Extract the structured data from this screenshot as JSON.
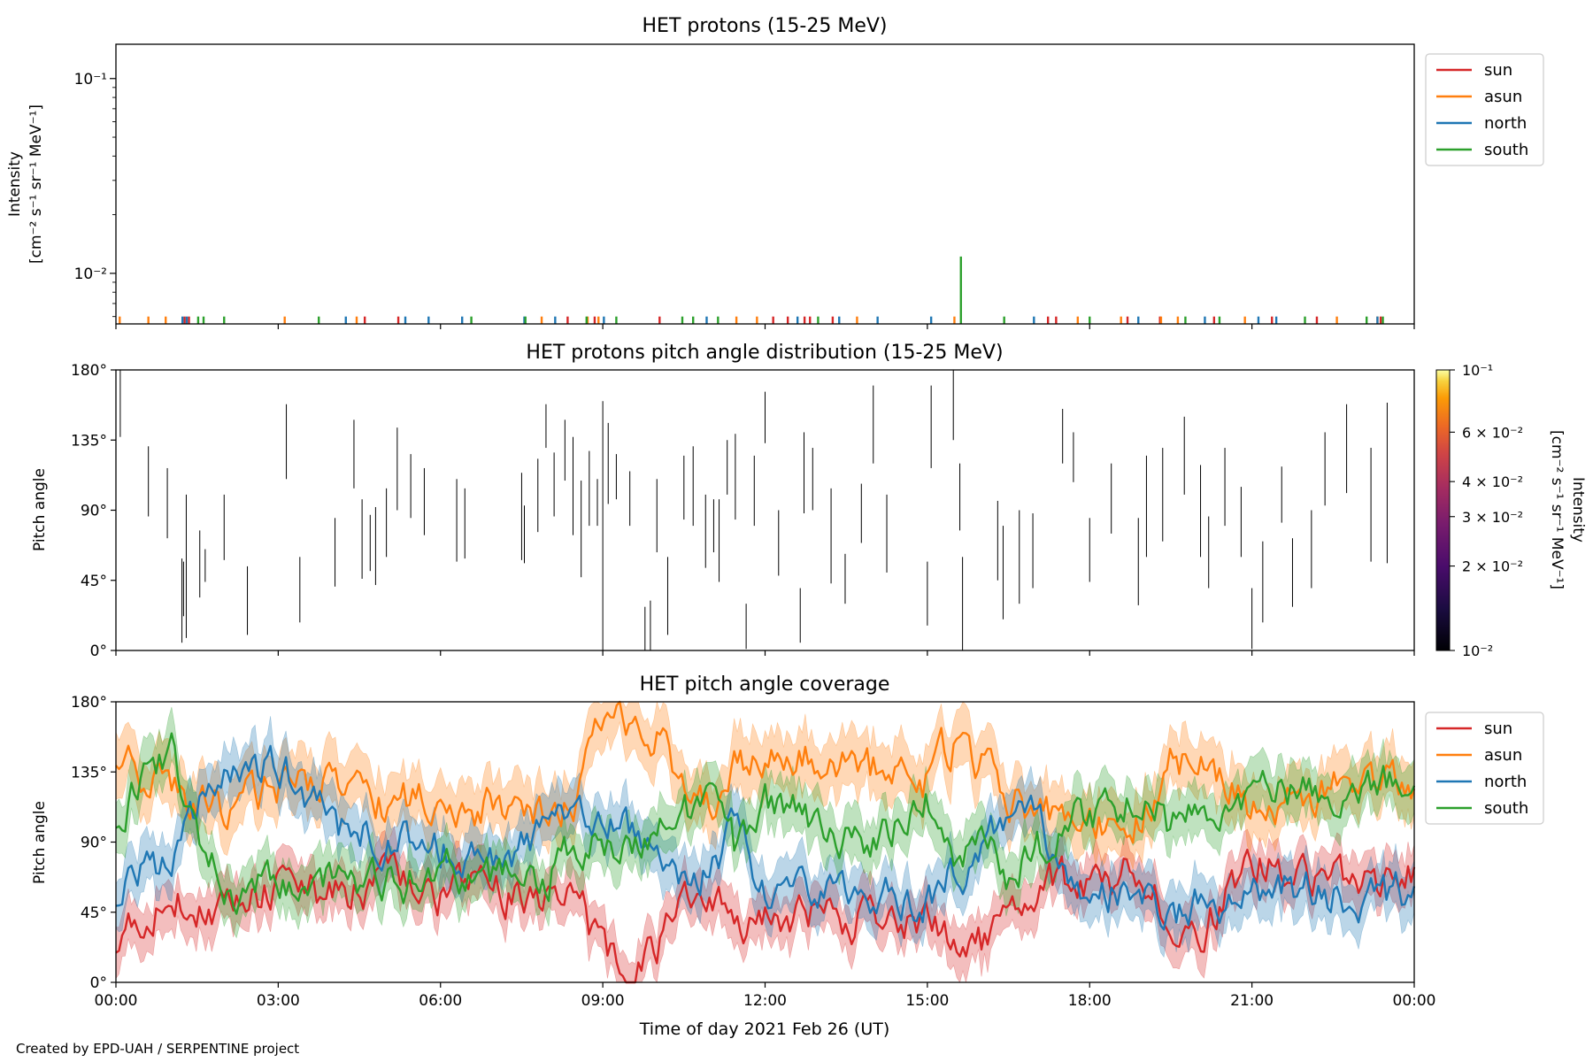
{
  "figure": {
    "credit": "Created by EPD-UAH / SERPENTINE project",
    "xlabel": "Time of day 2021 Feb 26 (UT)",
    "x_ticks": [
      "00:00",
      "03:00",
      "06:00",
      "09:00",
      "12:00",
      "15:00",
      "18:00",
      "21:00",
      "00:00"
    ],
    "x_range_hours": [
      0,
      24
    ],
    "colors": {
      "sun": "#d62728",
      "asun": "#ff7f0e",
      "north": "#1f77b4",
      "south": "#2ca02c"
    }
  },
  "chart_data": [
    {
      "type": "line",
      "title": "HET protons (15-25 MeV)",
      "ylabel": "Intensity",
      "yunit": "[cm⁻² s⁻¹ sr⁻¹ MeV⁻¹]",
      "yscale": "log",
      "ylim": [
        0.0055,
        0.15
      ],
      "y_ticks": [
        {
          "value": 0.1,
          "label": "10⁻¹"
        },
        {
          "value": 0.01,
          "label": "10⁻²"
        }
      ],
      "legend": [
        "sun",
        "asun",
        "north",
        "south"
      ],
      "legend_position": "outside-right",
      "x_unit": "hours since 00:00 UT",
      "series": [
        {
          "name": "sun",
          "color": "#d62728",
          "spike_times": [
            1.27,
            1.35,
            4.6,
            5.22,
            8.35,
            8.85,
            10.05,
            12.15,
            12.42,
            12.73,
            12.83,
            13.25,
            17.23,
            17.38,
            18.7,
            19.3,
            20.3,
            21.37,
            22.2,
            23.38
          ],
          "spike_values": [
            0.006,
            0.006,
            0.006,
            0.006,
            0.006,
            0.006,
            0.006,
            0.006,
            0.006,
            0.006,
            0.006,
            0.006,
            0.006,
            0.006,
            0.006,
            0.006,
            0.006,
            0.006,
            0.006,
            0.006
          ]
        },
        {
          "name": "asun",
          "color": "#ff7f0e",
          "spike_times": [
            0.07,
            0.6,
            0.92,
            3.12,
            4.45,
            7.87,
            8.72,
            8.92,
            11.47,
            11.85,
            13.7,
            15.5,
            17.78,
            18.58,
            19.32,
            19.63,
            20.87,
            22.57,
            23.32
          ],
          "spike_values": [
            0.006,
            0.006,
            0.006,
            0.006,
            0.006,
            0.006,
            0.006,
            0.006,
            0.006,
            0.006,
            0.006,
            0.006,
            0.006,
            0.006,
            0.006,
            0.006,
            0.006,
            0.006,
            0.006
          ]
        },
        {
          "name": "north",
          "color": "#1f77b4",
          "spike_times": [
            1.23,
            1.31,
            4.25,
            5.35,
            5.78,
            6.4,
            7.55,
            8.12,
            9.02,
            10.92,
            12.6,
            13.37,
            14.08,
            15.07,
            16.97,
            18.9,
            20.13,
            21.12,
            21.45,
            23.32
          ],
          "spike_values": [
            0.006,
            0.006,
            0.006,
            0.006,
            0.006,
            0.006,
            0.006,
            0.006,
            0.006,
            0.006,
            0.006,
            0.006,
            0.006,
            0.006,
            0.006,
            0.006,
            0.006,
            0.006,
            0.006,
            0.006
          ]
        },
        {
          "name": "south",
          "color": "#2ca02c",
          "spike_times": [
            1.52,
            1.62,
            2.0,
            3.75,
            6.57,
            7.57,
            8.7,
            9.25,
            10.47,
            10.67,
            11.13,
            12.98,
            15.62,
            16.42,
            18.0,
            19.77,
            20.4,
            21.98,
            23.12,
            23.42
          ],
          "spike_values": [
            0.006,
            0.006,
            0.006,
            0.006,
            0.006,
            0.006,
            0.006,
            0.006,
            0.006,
            0.006,
            0.006,
            0.006,
            0.0122,
            0.006,
            0.006,
            0.006,
            0.006,
            0.006,
            0.006,
            0.006
          ]
        }
      ]
    },
    {
      "type": "heatmap",
      "title": "HET protons pitch angle distribution (15-25 MeV)",
      "ylabel": "Pitch angle",
      "ylim": [
        0,
        180
      ],
      "y_ticks": [
        "0°",
        "45°",
        "90°",
        "135°",
        "180°"
      ],
      "colorbar": {
        "label": "Intensity",
        "unit": "[cm⁻² s⁻¹ sr⁻¹ MeV⁻¹]",
        "scale": "log",
        "range": [
          0.01,
          0.1
        ],
        "colormap": "inferno",
        "ticks": [
          {
            "value": 0.1,
            "label": "10⁻¹"
          },
          {
            "value": 0.06,
            "label": "6 × 10⁻²"
          },
          {
            "value": 0.04,
            "label": "4 × 10⁻²"
          },
          {
            "value": 0.03,
            "label": "3 × 10⁻²"
          },
          {
            "value": 0.02,
            "label": "2 × 10⁻²"
          },
          {
            "value": 0.01,
            "label": "10⁻²"
          }
        ]
      },
      "x_unit": "hours since 00:00 UT",
      "segments": [
        [
          0.08,
          137,
          180
        ],
        [
          0.6,
          86,
          131
        ],
        [
          0.95,
          72,
          117
        ],
        [
          1.22,
          5,
          59
        ],
        [
          1.25,
          22,
          57
        ],
        [
          1.3,
          8,
          100
        ],
        [
          1.55,
          34,
          77
        ],
        [
          1.65,
          44,
          65
        ],
        [
          2.0,
          58,
          100
        ],
        [
          2.43,
          10,
          54
        ],
        [
          3.15,
          110,
          158
        ],
        [
          3.4,
          18,
          60
        ],
        [
          4.05,
          41,
          85
        ],
        [
          4.4,
          104,
          148
        ],
        [
          4.55,
          46,
          97
        ],
        [
          4.7,
          51,
          87
        ],
        [
          4.8,
          42,
          92
        ],
        [
          5.0,
          60,
          104
        ],
        [
          5.2,
          90,
          143
        ],
        [
          5.45,
          85,
          126
        ],
        [
          5.7,
          74,
          117
        ],
        [
          6.3,
          57,
          110
        ],
        [
          6.45,
          59,
          104
        ],
        [
          7.5,
          58,
          114
        ],
        [
          7.55,
          56,
          93
        ],
        [
          7.8,
          76,
          123
        ],
        [
          7.95,
          130,
          158
        ],
        [
          8.1,
          86,
          127
        ],
        [
          8.3,
          109,
          148
        ],
        [
          8.45,
          74,
          137
        ],
        [
          8.6,
          47,
          109
        ],
        [
          8.75,
          80,
          128
        ],
        [
          8.9,
          80,
          110
        ],
        [
          9.0,
          0,
          160
        ],
        [
          9.1,
          94,
          146
        ],
        [
          9.25,
          97,
          126
        ],
        [
          9.5,
          80,
          115
        ],
        [
          9.78,
          0,
          28
        ],
        [
          9.88,
          0,
          32
        ],
        [
          10.0,
          63,
          110
        ],
        [
          10.2,
          10,
          60
        ],
        [
          10.5,
          84,
          125
        ],
        [
          10.67,
          80,
          131
        ],
        [
          10.9,
          53,
          100
        ],
        [
          11.05,
          63,
          97
        ],
        [
          11.15,
          44,
          97
        ],
        [
          11.3,
          100,
          135
        ],
        [
          11.45,
          84,
          139
        ],
        [
          11.65,
          1,
          30
        ],
        [
          11.8,
          80,
          125
        ],
        [
          12.0,
          133,
          166
        ],
        [
          12.25,
          48,
          90
        ],
        [
          12.65,
          5,
          40
        ],
        [
          12.72,
          88,
          140
        ],
        [
          12.88,
          90,
          130
        ],
        [
          13.22,
          43,
          104
        ],
        [
          13.48,
          30,
          62
        ],
        [
          13.78,
          69,
          107
        ],
        [
          14.0,
          120,
          170
        ],
        [
          14.25,
          50,
          100
        ],
        [
          15.0,
          16,
          57
        ],
        [
          15.07,
          117,
          170
        ],
        [
          15.48,
          135,
          180
        ],
        [
          15.6,
          77,
          120
        ],
        [
          15.65,
          0,
          60
        ],
        [
          16.3,
          45,
          96
        ],
        [
          16.4,
          20,
          80
        ],
        [
          16.7,
          30,
          90
        ],
        [
          16.95,
          40,
          88
        ],
        [
          17.5,
          120,
          155
        ],
        [
          17.7,
          108,
          140
        ],
        [
          18.0,
          44,
          85
        ],
        [
          18.4,
          75,
          120
        ],
        [
          18.9,
          29,
          85
        ],
        [
          19.05,
          60,
          125
        ],
        [
          19.35,
          70,
          130
        ],
        [
          19.75,
          100,
          150
        ],
        [
          20.05,
          60,
          119
        ],
        [
          20.2,
          40,
          86
        ],
        [
          20.5,
          80,
          130
        ],
        [
          20.8,
          60,
          105
        ],
        [
          21.0,
          1,
          40
        ],
        [
          21.2,
          18,
          70
        ],
        [
          21.55,
          82,
          118
        ],
        [
          21.75,
          28,
          72
        ],
        [
          22.1,
          40,
          90
        ],
        [
          22.35,
          93,
          140
        ],
        [
          22.75,
          101,
          158
        ],
        [
          23.2,
          57,
          130
        ],
        [
          23.5,
          56,
          159
        ]
      ]
    },
    {
      "type": "line",
      "title": "HET pitch angle coverage",
      "ylabel": "Pitch angle",
      "ylim": [
        0,
        180
      ],
      "y_ticks": [
        "0°",
        "45°",
        "90°",
        "135°",
        "180°"
      ],
      "legend": [
        "sun",
        "asun",
        "north",
        "south"
      ],
      "legend_position": "outside-right",
      "band": "shaded spread around each series",
      "x_unit": "hours since 00:00 UT",
      "x": [
        0,
        1,
        2,
        3,
        4,
        5,
        6,
        7,
        8,
        8.5,
        9,
        9.5,
        10,
        10.5,
        11,
        11.5,
        12,
        13,
        14,
        15,
        15.5,
        16,
        16.5,
        17,
        18,
        19,
        19.5,
        20,
        21,
        22,
        23,
        24
      ],
      "series": [
        {
          "name": "sun",
          "color": "#d62728",
          "values": [
            30,
            55,
            45,
            60,
            55,
            65,
            55,
            60,
            50,
            60,
            15,
            15,
            20,
            45,
            60,
            30,
            40,
            45,
            40,
            35,
            30,
            25,
            40,
            60,
            65,
            70,
            45,
            30,
            80,
            70,
            55,
            70
          ],
          "spread": [
            15,
            15,
            15,
            15,
            15,
            15,
            15,
            15,
            15,
            15,
            15,
            15,
            15,
            15,
            15,
            15,
            15,
            15,
            15,
            15,
            15,
            15,
            15,
            15,
            15,
            15,
            15,
            15,
            15,
            15,
            15,
            15
          ]
        },
        {
          "name": "asun",
          "color": "#ff7f0e",
          "values": [
            150,
            120,
            110,
            125,
            125,
            115,
            120,
            110,
            110,
            120,
            170,
            170,
            160,
            125,
            120,
            140,
            150,
            145,
            135,
            130,
            155,
            140,
            120,
            110,
            100,
            110,
            140,
            145,
            110,
            115,
            130,
            120
          ],
          "spread": [
            18,
            18,
            18,
            18,
            18,
            18,
            18,
            18,
            18,
            18,
            18,
            18,
            18,
            18,
            18,
            18,
            18,
            18,
            18,
            18,
            18,
            18,
            18,
            18,
            18,
            18,
            18,
            18,
            18,
            18,
            18,
            18
          ]
        },
        {
          "name": "north",
          "color": "#1f77b4",
          "values": [
            60,
            80,
            135,
            140,
            100,
            90,
            85,
            80,
            95,
            100,
            100,
            95,
            85,
            70,
            70,
            100,
            60,
            60,
            55,
            50,
            70,
            85,
            110,
            100,
            60,
            55,
            45,
            50,
            60,
            60,
            50,
            60
          ],
          "spread": [
            16,
            16,
            16,
            16,
            16,
            16,
            16,
            16,
            16,
            16,
            16,
            16,
            16,
            16,
            16,
            16,
            16,
            16,
            16,
            16,
            16,
            16,
            16,
            16,
            16,
            16,
            16,
            16,
            16,
            16,
            16,
            16
          ]
        },
        {
          "name": "south",
          "color": "#2ca02c",
          "values": [
            110,
            150,
            55,
            60,
            70,
            60,
            75,
            65,
            70,
            90,
            90,
            85,
            95,
            110,
            110,
            80,
            120,
            95,
            85,
            115,
            70,
            90,
            65,
            85,
            110,
            120,
            100,
            110,
            120,
            125,
            130,
            125
          ],
          "spread": [
            16,
            16,
            16,
            16,
            16,
            16,
            16,
            16,
            16,
            16,
            16,
            16,
            16,
            16,
            16,
            16,
            16,
            16,
            16,
            16,
            16,
            16,
            16,
            16,
            16,
            16,
            16,
            16,
            16,
            16,
            16,
            16
          ]
        }
      ]
    }
  ]
}
